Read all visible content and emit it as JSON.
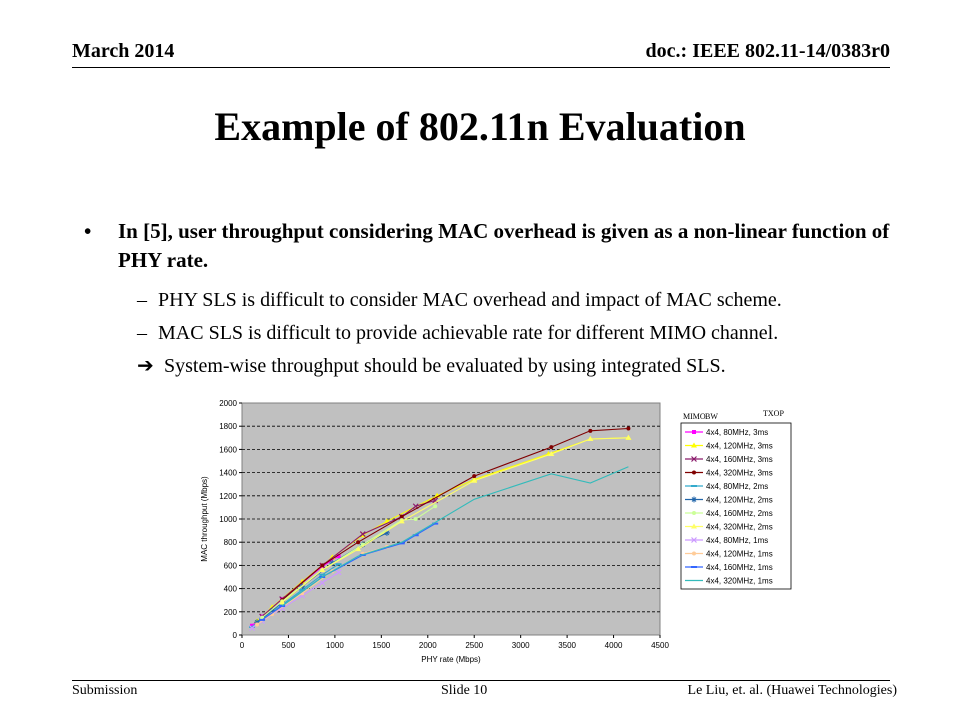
{
  "header": {
    "date": "March 2014",
    "doc": "doc.: IEEE 802.11-14/0383r0"
  },
  "title": "Example of 802.11n Evaluation",
  "bullets": {
    "main": "In [5], user throughput considering MAC overhead is given as a non-linear function of PHY rate.",
    "dash": "–",
    "arrow": "➔",
    "sub1": "PHY SLS is difficult to consider MAC overhead and impact of MAC scheme.",
    "sub2": "MAC SLS is difficult to provide achievable rate for different MIMO channel.",
    "sub3": "System-wise throughput should be evaluated by using integrated SLS."
  },
  "footer": {
    "left": "Submission",
    "center": "Slide 10",
    "right": "Le Liu, et. al. (Huawei Technologies)"
  },
  "chart_data": {
    "type": "line",
    "xlabel": "PHY rate (Mbps)",
    "ylabel": "MAC throughput (Mbps)",
    "xlim": [
      0,
      4500
    ],
    "ylim": [
      0,
      2000
    ],
    "xticks": [
      0,
      500,
      1000,
      1500,
      2000,
      2500,
      3000,
      3500,
      4000,
      4500
    ],
    "yticks": [
      0,
      200,
      400,
      600,
      800,
      1000,
      1200,
      1400,
      1600,
      1800,
      2000
    ],
    "grid": "horizontal-dashed",
    "legend_placement": "right",
    "legend_headers": [
      "MIMO",
      "BW",
      "TXOP"
    ],
    "series": [
      {
        "name": "4x4, 80MHz, 3ms",
        "color": "#ff00ff",
        "marker": "square",
        "points": [
          [
            108,
            80
          ],
          [
            216,
            160
          ],
          [
            432,
            310
          ],
          [
            648,
            450
          ],
          [
            864,
            590
          ],
          [
            1040,
            680
          ]
        ]
      },
      {
        "name": "4x4, 120MHz, 3ms",
        "color": "#ffff00",
        "marker": "triangle",
        "points": [
          [
            162,
            120
          ],
          [
            324,
            240
          ],
          [
            648,
            460
          ],
          [
            972,
            670
          ],
          [
            1300,
            860
          ],
          [
            1560,
            980
          ],
          [
            2100,
            1200
          ],
          [
            2500,
            1340
          ],
          [
            3300,
            1560
          ],
          [
            3750,
            1690
          ],
          [
            4160,
            1700
          ]
        ]
      },
      {
        "name": "4x4, 160MHz, 3ms",
        "color": "#8b1a6b",
        "marker": "x",
        "points": [
          [
            216,
            160
          ],
          [
            432,
            310
          ],
          [
            864,
            600
          ],
          [
            1300,
            870
          ],
          [
            1720,
            1020
          ],
          [
            1870,
            1110
          ],
          [
            2080,
            1160
          ]
        ]
      },
      {
        "name": "4x4, 320MHz, 3ms",
        "color": "#800000",
        "marker": "dot",
        "points": [
          [
            432,
            300
          ],
          [
            864,
            600
          ],
          [
            1250,
            800
          ],
          [
            1720,
            1020
          ],
          [
            2500,
            1370
          ],
          [
            3330,
            1620
          ],
          [
            3750,
            1760
          ],
          [
            4160,
            1780
          ]
        ]
      },
      {
        "name": "4x4, 80MHz, 2ms",
        "color": "#33aacc",
        "marker": "dash",
        "points": [
          [
            108,
            70
          ],
          [
            216,
            140
          ],
          [
            432,
            260
          ],
          [
            648,
            390
          ],
          [
            864,
            520
          ],
          [
            1040,
            610
          ]
        ]
      },
      {
        "name": "4x4, 120MHz, 2ms",
        "color": "#2266aa",
        "marker": "star",
        "points": [
          [
            162,
            110
          ],
          [
            324,
            210
          ],
          [
            648,
            420
          ],
          [
            972,
            620
          ],
          [
            1300,
            780
          ],
          [
            1560,
            880
          ]
        ]
      },
      {
        "name": "4x4, 160MHz, 2ms",
        "color": "#ccff99",
        "marker": "dot",
        "points": [
          [
            216,
            150
          ],
          [
            432,
            290
          ],
          [
            864,
            560
          ],
          [
            1300,
            780
          ],
          [
            1720,
            990
          ],
          [
            1870,
            1000
          ],
          [
            2080,
            1110
          ]
        ]
      },
      {
        "name": "4x4, 320MHz, 2ms",
        "color": "#ffff66",
        "marker": "triangle",
        "points": [
          [
            432,
            280
          ],
          [
            864,
            560
          ],
          [
            1250,
            740
          ],
          [
            1720,
            980
          ],
          [
            2500,
            1330
          ],
          [
            3330,
            1560
          ],
          [
            3750,
            1690
          ],
          [
            4160,
            1700
          ]
        ]
      },
      {
        "name": "4x4, 80MHz, 1ms",
        "color": "#cc99ff",
        "marker": "x",
        "points": [
          [
            108,
            60
          ],
          [
            216,
            120
          ],
          [
            432,
            230
          ],
          [
            648,
            340
          ],
          [
            864,
            450
          ],
          [
            1040,
            540
          ]
        ]
      },
      {
        "name": "4x4, 120MHz, 1ms",
        "color": "#ffcc99",
        "marker": "dot",
        "points": [
          [
            162,
            90
          ],
          [
            324,
            180
          ],
          [
            648,
            360
          ],
          [
            972,
            550
          ],
          [
            1300,
            700
          ],
          [
            1560,
            760
          ]
        ]
      },
      {
        "name": "4x4, 160MHz, 1ms",
        "color": "#3366ff",
        "marker": "dash",
        "points": [
          [
            216,
            130
          ],
          [
            432,
            250
          ],
          [
            864,
            500
          ],
          [
            1300,
            690
          ],
          [
            1720,
            790
          ],
          [
            1870,
            860
          ],
          [
            2080,
            960
          ]
        ]
      },
      {
        "name": "4x4, 320MHz, 1ms",
        "color": "#33bbbb",
        "marker": "none",
        "points": [
          [
            432,
            250
          ],
          [
            864,
            500
          ],
          [
            1250,
            680
          ],
          [
            1720,
            800
          ],
          [
            2500,
            1170
          ],
          [
            3330,
            1390
          ],
          [
            3750,
            1310
          ],
          [
            4160,
            1450
          ]
        ]
      }
    ]
  }
}
